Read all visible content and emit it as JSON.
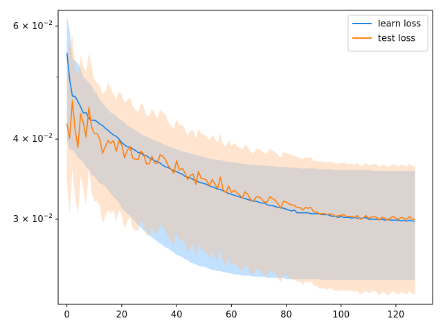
{
  "chart_data": {
    "type": "line",
    "title": "",
    "xlabel": "",
    "ylabel": "",
    "xlim": [
      -3.2,
      133.4
    ],
    "ylim": [
      0.0221,
      0.0635
    ],
    "yscale": "log",
    "grid": false,
    "legend_position": "top-right",
    "x_ticks": [
      {
        "value": 0,
        "label": "0"
      },
      {
        "value": 20,
        "label": "20"
      },
      {
        "value": 40,
        "label": "40"
      },
      {
        "value": 60,
        "label": "60"
      },
      {
        "value": 80,
        "label": "80"
      },
      {
        "value": 100,
        "label": "100"
      },
      {
        "value": 120,
        "label": "120"
      }
    ],
    "y_ticks": [
      {
        "value": 0.03,
        "base": "3",
        "sup": "−2"
      },
      {
        "value": 0.04,
        "base": "4",
        "sup": "−2"
      },
      {
        "value": 0.06,
        "base": "6",
        "sup": "−2"
      }
    ],
    "y_minor_ticks": [
      0.05
    ],
    "x": [
      0,
      1,
      2,
      3,
      4,
      5,
      6,
      7,
      8,
      9,
      10,
      11,
      12,
      13,
      14,
      15,
      16,
      17,
      18,
      19,
      20,
      21,
      22,
      23,
      24,
      25,
      26,
      27,
      28,
      29,
      30,
      31,
      32,
      33,
      34,
      35,
      36,
      37,
      38,
      39,
      40,
      41,
      42,
      43,
      44,
      45,
      46,
      47,
      48,
      49,
      50,
      51,
      52,
      53,
      54,
      55,
      56,
      57,
      58,
      59,
      60,
      61,
      62,
      63,
      64,
      65,
      66,
      67,
      68,
      69,
      70,
      71,
      72,
      73,
      74,
      75,
      76,
      77,
      78,
      79,
      80,
      81,
      82,
      83,
      84,
      85,
      86,
      87,
      88,
      89,
      90,
      91,
      92,
      93,
      94,
      95,
      96,
      97,
      98,
      99,
      100,
      101,
      102,
      103,
      104,
      105,
      106,
      107,
      108,
      109,
      110,
      111,
      112,
      113,
      114,
      115,
      116,
      117,
      118,
      119,
      120,
      121,
      122,
      123,
      124,
      125,
      126,
      127
    ],
    "series": [
      {
        "name": "learn loss",
        "color": "#1f77b4",
        "line_color": "#1a80e0",
        "fill_color": "#66b3ff",
        "values": [
          0.0545,
          0.0495,
          0.0467,
          0.0466,
          0.0458,
          0.0449,
          0.0439,
          0.044,
          0.0431,
          0.0428,
          0.0428,
          0.0426,
          0.0422,
          0.042,
          0.0416,
          0.0413,
          0.0409,
          0.0406,
          0.0404,
          0.04,
          0.0395,
          0.0392,
          0.0389,
          0.0389,
          0.0386,
          0.0384,
          0.0381,
          0.0381,
          0.0377,
          0.0377,
          0.0374,
          0.0372,
          0.037,
          0.0369,
          0.0367,
          0.0364,
          0.0362,
          0.0361,
          0.0359,
          0.0357,
          0.0356,
          0.0354,
          0.0353,
          0.035,
          0.0349,
          0.0348,
          0.0346,
          0.0345,
          0.0343,
          0.0342,
          0.0341,
          0.034,
          0.0338,
          0.0337,
          0.0336,
          0.0334,
          0.0334,
          0.0332,
          0.0331,
          0.0329,
          0.0328,
          0.0327,
          0.0326,
          0.0325,
          0.0324,
          0.0323,
          0.0322,
          0.0321,
          0.032,
          0.032,
          0.0319,
          0.0318,
          0.0318,
          0.0316,
          0.0315,
          0.0315,
          0.0314,
          0.0313,
          0.0313,
          0.0312,
          0.0311,
          0.031,
          0.0309,
          0.031,
          0.0307,
          0.0307,
          0.0307,
          0.0307,
          0.0307,
          0.0306,
          0.0306,
          0.0306,
          0.0306,
          0.0305,
          0.0305,
          0.0305,
          0.0304,
          0.0303,
          0.0303,
          0.0302,
          0.0303,
          0.0302,
          0.0302,
          0.0302,
          0.0301,
          0.0302,
          0.0301,
          0.0301,
          0.0301,
          0.0302,
          0.03,
          0.03,
          0.03,
          0.03,
          0.03,
          0.03,
          0.0299,
          0.03,
          0.0299,
          0.0299,
          0.0299,
          0.0299,
          0.0298,
          0.0299,
          0.0298,
          0.0299,
          0.0298,
          0.0298
        ],
        "band_upper": [
          0.062,
          0.059,
          0.0535,
          0.053,
          0.0525,
          0.0515,
          0.05,
          0.0495,
          0.049,
          0.0485,
          0.0475,
          0.047,
          0.046,
          0.0455,
          0.045,
          0.0445,
          0.044,
          0.0438,
          0.0435,
          0.043,
          0.0428,
          0.0425,
          0.042,
          0.0418,
          0.0415,
          0.0413,
          0.041,
          0.0408,
          0.0405,
          0.0404,
          0.0402,
          0.04,
          0.0398,
          0.0397,
          0.0395,
          0.0393,
          0.0392,
          0.039,
          0.0388,
          0.0387,
          0.0386,
          0.0384,
          0.0383,
          0.0382,
          0.0381,
          0.038,
          0.0379,
          0.0378,
          0.0377,
          0.0376,
          0.0375,
          0.0374,
          0.0373,
          0.0372,
          0.0372,
          0.0371,
          0.0371,
          0.037,
          0.0369,
          0.0369,
          0.0368,
          0.0368,
          0.0367,
          0.0367,
          0.0366,
          0.0366,
          0.0365,
          0.0365,
          0.0365,
          0.0364,
          0.0364,
          0.0364,
          0.0364,
          0.0363,
          0.0363,
          0.0363,
          0.0362,
          0.0362,
          0.0362,
          0.0362,
          0.0362,
          0.0361,
          0.0361,
          0.0361,
          0.0361,
          0.036,
          0.036,
          0.036,
          0.036,
          0.036,
          0.036,
          0.036,
          0.0359,
          0.0359,
          0.0359,
          0.0359,
          0.0359,
          0.0358,
          0.0358,
          0.0358,
          0.0358,
          0.0358,
          0.0358,
          0.0358,
          0.0358,
          0.0358,
          0.0358,
          0.0358,
          0.0358,
          0.0358,
          0.0358,
          0.0357,
          0.0357,
          0.0357,
          0.0357,
          0.0357,
          0.0357,
          0.0357,
          0.0357,
          0.0357,
          0.0357,
          0.0357,
          0.0357,
          0.0357,
          0.0357,
          0.0357,
          0.0357,
          0.0357
        ],
        "band_lower": [
          0.04,
          0.0385,
          0.0385,
          0.038,
          0.0374,
          0.0372,
          0.0368,
          0.0362,
          0.0358,
          0.0352,
          0.035,
          0.0345,
          0.0341,
          0.034,
          0.0337,
          0.0333,
          0.0329,
          0.0325,
          0.0322,
          0.0318,
          0.0312,
          0.0309,
          0.0306,
          0.0304,
          0.03,
          0.0297,
          0.0294,
          0.0291,
          0.0288,
          0.0286,
          0.0283,
          0.0281,
          0.0279,
          0.0277,
          0.0275,
          0.0273,
          0.0271,
          0.027,
          0.0268,
          0.0266,
          0.0264,
          0.0263,
          0.0262,
          0.026,
          0.0259,
          0.0257,
          0.0256,
          0.0255,
          0.0254,
          0.0253,
          0.0253,
          0.0252,
          0.0251,
          0.025,
          0.025,
          0.0249,
          0.0249,
          0.0248,
          0.0248,
          0.0247,
          0.0247,
          0.0246,
          0.0246,
          0.0246,
          0.0245,
          0.0245,
          0.0245,
          0.0245,
          0.0244,
          0.0244,
          0.0244,
          0.0244,
          0.0244,
          0.0243,
          0.0243,
          0.0243,
          0.0243,
          0.0243,
          0.0243,
          0.0243,
          0.0242,
          0.0242,
          0.0242,
          0.0242,
          0.0242,
          0.0242,
          0.0242,
          0.0242,
          0.0242,
          0.0242,
          0.0242,
          0.0242,
          0.0242,
          0.0241,
          0.0241,
          0.0241,
          0.0241,
          0.0241,
          0.0241,
          0.0241,
          0.0241,
          0.0241,
          0.0241,
          0.0241,
          0.0241,
          0.0241,
          0.0241,
          0.0241,
          0.0241,
          0.0241,
          0.0241,
          0.0241,
          0.0241,
          0.0241,
          0.0241,
          0.0241,
          0.0241,
          0.0241,
          0.0241,
          0.0241,
          0.0241,
          0.0241,
          0.0241,
          0.0241,
          0.0241,
          0.0241,
          0.0241,
          0.0241
        ]
      },
      {
        "name": "test loss",
        "color": "#ff7f0e",
        "line_color": "#ff7f0e",
        "fill_color": "#ffbf87",
        "values": [
          0.0423,
          0.0401,
          0.0459,
          0.0414,
          0.0388,
          0.0438,
          0.0424,
          0.0403,
          0.0448,
          0.0418,
          0.0408,
          0.0408,
          0.04,
          0.038,
          0.0389,
          0.0398,
          0.0394,
          0.0398,
          0.0383,
          0.0398,
          0.0392,
          0.0374,
          0.0384,
          0.0389,
          0.0374,
          0.0372,
          0.0372,
          0.0383,
          0.0379,
          0.0366,
          0.0366,
          0.0376,
          0.0367,
          0.0367,
          0.0378,
          0.0376,
          0.0371,
          0.0363,
          0.0359,
          0.0354,
          0.037,
          0.0358,
          0.036,
          0.0355,
          0.0346,
          0.0351,
          0.0353,
          0.034,
          0.0356,
          0.0347,
          0.0347,
          0.0345,
          0.0338,
          0.0346,
          0.034,
          0.0335,
          0.0349,
          0.0333,
          0.033,
          0.0338,
          0.033,
          0.0333,
          0.033,
          0.0327,
          0.0324,
          0.0331,
          0.0328,
          0.0322,
          0.032,
          0.0325,
          0.0325,
          0.0323,
          0.0319,
          0.0319,
          0.0325,
          0.0323,
          0.0321,
          0.0317,
          0.0312,
          0.032,
          0.0319,
          0.0317,
          0.0316,
          0.0315,
          0.0313,
          0.0313,
          0.031,
          0.0313,
          0.0312,
          0.0313,
          0.0308,
          0.0308,
          0.0306,
          0.0306,
          0.0306,
          0.0305,
          0.0306,
          0.0305,
          0.0303,
          0.0304,
          0.0304,
          0.0305,
          0.0303,
          0.0303,
          0.0303,
          0.0302,
          0.0304,
          0.03,
          0.0301,
          0.0304,
          0.0301,
          0.0302,
          0.0303,
          0.0302,
          0.0299,
          0.0302,
          0.0301,
          0.0299,
          0.0301,
          0.0303,
          0.0301,
          0.03,
          0.0302,
          0.0301,
          0.03,
          0.0303,
          0.03,
          0.03
        ],
        "band_upper": [
          0.0535,
          0.056,
          0.058,
          0.052,
          0.05,
          0.054,
          0.052,
          0.051,
          0.0545,
          0.052,
          0.0495,
          0.049,
          0.0485,
          0.047,
          0.0475,
          0.049,
          0.048,
          0.047,
          0.046,
          0.0475,
          0.047,
          0.0455,
          0.046,
          0.0465,
          0.045,
          0.0445,
          0.044,
          0.0455,
          0.045,
          0.0435,
          0.0435,
          0.0445,
          0.044,
          0.043,
          0.0445,
          0.044,
          0.0436,
          0.0425,
          0.042,
          0.0415,
          0.043,
          0.042,
          0.0422,
          0.0415,
          0.0405,
          0.0412,
          0.0414,
          0.04,
          0.0415,
          0.0408,
          0.0406,
          0.0404,
          0.0398,
          0.0406,
          0.04,
          0.0395,
          0.0408,
          0.0392,
          0.039,
          0.0398,
          0.039,
          0.0394,
          0.039,
          0.0388,
          0.0385,
          0.0392,
          0.0388,
          0.0383,
          0.038,
          0.0386,
          0.0386,
          0.0384,
          0.038,
          0.038,
          0.0386,
          0.0384,
          0.0382,
          0.0378,
          0.0374,
          0.0382,
          0.038,
          0.0379,
          0.0378,
          0.0376,
          0.0375,
          0.0375,
          0.0372,
          0.0375,
          0.0374,
          0.0375,
          0.037,
          0.037,
          0.0369,
          0.0369,
          0.0369,
          0.0368,
          0.0369,
          0.0368,
          0.0366,
          0.0367,
          0.0367,
          0.0368,
          0.0366,
          0.0366,
          0.0366,
          0.0365,
          0.0367,
          0.0363,
          0.0364,
          0.0367,
          0.0364,
          0.0365,
          0.0366,
          0.0365,
          0.0362,
          0.0365,
          0.0364,
          0.0362,
          0.0364,
          0.0366,
          0.0364,
          0.0363,
          0.0365,
          0.0364,
          0.0363,
          0.0366,
          0.0363,
          0.0363
        ],
        "band_lower": [
          0.0345,
          0.0305,
          0.036,
          0.0325,
          0.0305,
          0.035,
          0.0335,
          0.0315,
          0.036,
          0.033,
          0.032,
          0.032,
          0.0315,
          0.0295,
          0.0303,
          0.031,
          0.0306,
          0.031,
          0.0298,
          0.031,
          0.0304,
          0.029,
          0.0298,
          0.0302,
          0.029,
          0.0288,
          0.0288,
          0.0298,
          0.0294,
          0.0283,
          0.0283,
          0.0292,
          0.0285,
          0.0285,
          0.0294,
          0.0292,
          0.0288,
          0.0281,
          0.0278,
          0.0273,
          0.0287,
          0.0277,
          0.0279,
          0.0275,
          0.0266,
          0.0271,
          0.0273,
          0.0262,
          0.0276,
          0.0268,
          0.0268,
          0.0266,
          0.026,
          0.0267,
          0.0262,
          0.0258,
          0.027,
          0.0256,
          0.0254,
          0.0261,
          0.0254,
          0.0256,
          0.0254,
          0.0251,
          0.0249,
          0.0255,
          0.0252,
          0.0247,
          0.0246,
          0.025,
          0.025,
          0.0248,
          0.0245,
          0.0245,
          0.025,
          0.0248,
          0.0247,
          0.0243,
          0.0239,
          0.0246,
          0.0245,
          0.0243,
          0.0242,
          0.0241,
          0.024,
          0.024,
          0.0237,
          0.024,
          0.0239,
          0.024,
          0.0236,
          0.0236,
          0.0234,
          0.0234,
          0.0234,
          0.0233,
          0.0234,
          0.0233,
          0.0232,
          0.0232,
          0.0232,
          0.0233,
          0.0232,
          0.0232,
          0.0232,
          0.0231,
          0.0232,
          0.0229,
          0.023,
          0.0232,
          0.023,
          0.0231,
          0.0232,
          0.0231,
          0.0228,
          0.0231,
          0.023,
          0.0228,
          0.023,
          0.0232,
          0.023,
          0.0229,
          0.0231,
          0.023,
          0.0229,
          0.0232,
          0.0229,
          0.0229
        ]
      }
    ]
  }
}
